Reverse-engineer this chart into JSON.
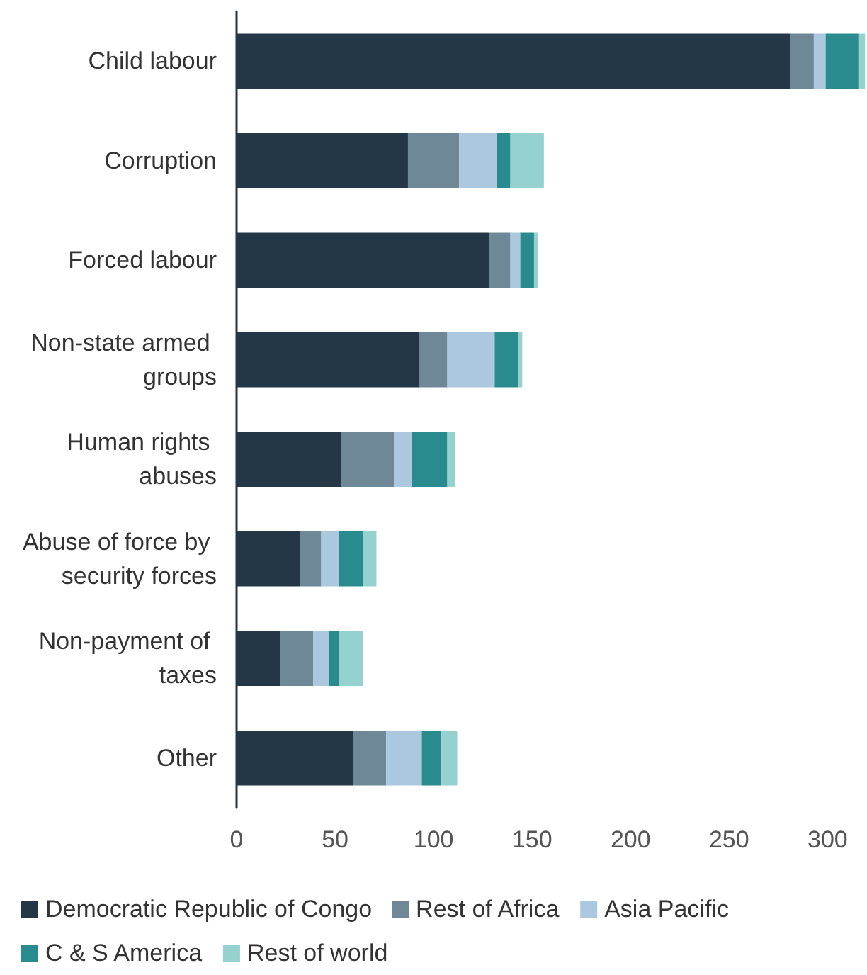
{
  "chart_data": {
    "type": "bar",
    "orientation": "horizontal",
    "stacked": true,
    "categories": [
      "Child labour",
      "Corruption",
      "Forced labour",
      "Non-state armed groups",
      "Human rights abuses",
      "Abuse of force by security forces",
      "Non-payment of taxes",
      "Other"
    ],
    "series": [
      {
        "name": "Democratic Republic of Congo",
        "color": "#243746",
        "values": [
          281,
          87,
          128,
          93,
          53,
          32,
          22,
          59
        ]
      },
      {
        "name": "Rest of Africa",
        "color": "#6e8898",
        "values": [
          12,
          26,
          11,
          14,
          27,
          11,
          17,
          17
        ]
      },
      {
        "name": "Asia Pacific",
        "color": "#abc8de",
        "values": [
          6,
          19,
          5,
          24,
          9,
          9,
          8,
          18
        ]
      },
      {
        "name": "C & S America",
        "color": "#2a8b8f",
        "values": [
          17,
          7,
          7,
          12,
          18,
          12,
          5,
          10
        ]
      },
      {
        "name": "Rest of world",
        "color": "#95d1cf",
        "values": [
          3,
          17,
          2,
          2,
          4,
          7,
          12,
          8
        ]
      }
    ],
    "xlim": [
      0,
      320
    ],
    "xticks": [
      0,
      50,
      100,
      150,
      200,
      250,
      300
    ],
    "grid": false,
    "legend": "bottom"
  }
}
